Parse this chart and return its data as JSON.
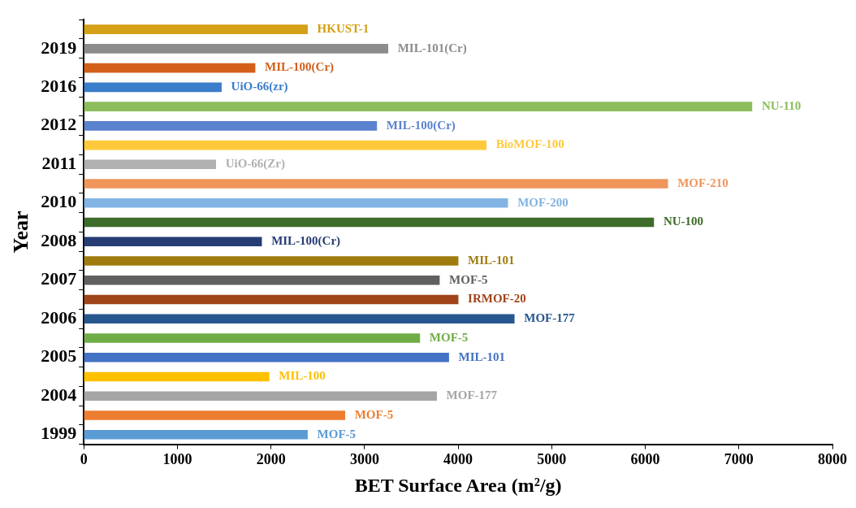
{
  "chart_data": {
    "type": "bar",
    "orientation": "horizontal",
    "xlabel": "BET Surface Area (m²/g)",
    "ylabel": "Year",
    "categories": [
      null,
      "2019",
      null,
      "2016",
      null,
      "2012",
      null,
      "2011",
      null,
      "2010",
      null,
      "2008",
      null,
      "2007",
      null,
      "2006",
      null,
      "2005",
      null,
      "2004",
      null,
      "1999"
    ],
    "xlim": [
      0,
      8000
    ],
    "xticks": [
      0,
      1000,
      2000,
      3000,
      4000,
      5000,
      6000,
      7000,
      8000
    ],
    "grid": false,
    "legend": false,
    "series": [
      {
        "name": "HKUST-1",
        "color": "#d4a017",
        "values": [
          2390,
          null,
          null,
          null,
          null,
          null,
          null,
          null,
          null,
          null,
          null,
          null,
          null,
          null,
          null,
          null,
          null,
          null,
          null,
          null,
          null,
          null
        ]
      },
      {
        "name": "MIL-101(Cr)",
        "color": "#8c8c8c",
        "values": [
          null,
          3250,
          null,
          null,
          null,
          null,
          null,
          null,
          null,
          null,
          null,
          null,
          null,
          null,
          null,
          null,
          null,
          null,
          null,
          null,
          null,
          null
        ]
      },
      {
        "name": "MIL-100(Cr)",
        "color": "#d45f1a",
        "values": [
          null,
          null,
          1830,
          null,
          null,
          null,
          null,
          null,
          null,
          null,
          null,
          null,
          null,
          null,
          null,
          null,
          null,
          null,
          null,
          null,
          null,
          null
        ]
      },
      {
        "name": "UiO-66(zr)",
        "color": "#3a7dc9",
        "values": [
          null,
          null,
          null,
          1470,
          null,
          null,
          null,
          null,
          null,
          null,
          null,
          null,
          null,
          null,
          null,
          null,
          null,
          null,
          null,
          null,
          null,
          null
        ]
      },
      {
        "name": "NU-110",
        "color": "#8cbd5a",
        "values": [
          null,
          null,
          null,
          null,
          7140,
          null,
          null,
          null,
          null,
          null,
          null,
          null,
          null,
          null,
          null,
          null,
          null,
          null,
          null,
          null,
          null,
          null
        ]
      },
      {
        "name": "MIL-100(Cr)",
        "color": "#5b82cf",
        "values": [
          null,
          null,
          null,
          null,
          null,
          3130,
          null,
          null,
          null,
          null,
          null,
          null,
          null,
          null,
          null,
          null,
          null,
          null,
          null,
          null,
          null,
          null
        ]
      },
      {
        "name": "BioMOF-100",
        "color": "#ffc93c",
        "values": [
          null,
          null,
          null,
          null,
          null,
          null,
          4300,
          null,
          null,
          null,
          null,
          null,
          null,
          null,
          null,
          null,
          null,
          null,
          null,
          null,
          null,
          null
        ]
      },
      {
        "name": "UiO-66(Zr)",
        "color": "#b0b0b0",
        "values": [
          null,
          null,
          null,
          null,
          null,
          null,
          null,
          1410,
          null,
          null,
          null,
          null,
          null,
          null,
          null,
          null,
          null,
          null,
          null,
          null,
          null,
          null
        ]
      },
      {
        "name": "MOF-210",
        "color": "#f0965a",
        "values": [
          null,
          null,
          null,
          null,
          null,
          null,
          null,
          null,
          6240,
          null,
          null,
          null,
          null,
          null,
          null,
          null,
          null,
          null,
          null,
          null,
          null,
          null
        ]
      },
      {
        "name": "MOF-200",
        "color": "#82b4e3",
        "values": [
          null,
          null,
          null,
          null,
          null,
          null,
          null,
          null,
          null,
          4530,
          null,
          null,
          null,
          null,
          null,
          null,
          null,
          null,
          null,
          null,
          null,
          null
        ]
      },
      {
        "name": "NU-100",
        "color": "#3d6b2a",
        "values": [
          null,
          null,
          null,
          null,
          null,
          null,
          null,
          null,
          null,
          null,
          6090,
          null,
          null,
          null,
          null,
          null,
          null,
          null,
          null,
          null,
          null,
          null
        ]
      },
      {
        "name": "MIL-100(Cr)",
        "color": "#263d73",
        "values": [
          null,
          null,
          null,
          null,
          null,
          null,
          null,
          null,
          null,
          null,
          null,
          1900,
          null,
          null,
          null,
          null,
          null,
          null,
          null,
          null,
          null,
          null
        ]
      },
      {
        "name": "MIL-101",
        "color": "#a07c10",
        "values": [
          null,
          null,
          null,
          null,
          null,
          null,
          null,
          null,
          null,
          null,
          null,
          null,
          4000,
          null,
          null,
          null,
          null,
          null,
          null,
          null,
          null,
          null
        ]
      },
      {
        "name": "MOF-5",
        "color": "#606060",
        "values": [
          null,
          null,
          null,
          null,
          null,
          null,
          null,
          null,
          null,
          null,
          null,
          null,
          null,
          3800,
          null,
          null,
          null,
          null,
          null,
          null,
          null,
          null
        ]
      },
      {
        "name": "IRMOF-20",
        "color": "#a0441a",
        "values": [
          null,
          null,
          null,
          null,
          null,
          null,
          null,
          null,
          null,
          null,
          null,
          null,
          null,
          null,
          4000,
          null,
          null,
          null,
          null,
          null,
          null,
          null
        ]
      },
      {
        "name": "MOF-177",
        "color": "#27578f",
        "values": [
          null,
          null,
          null,
          null,
          null,
          null,
          null,
          null,
          null,
          null,
          null,
          null,
          null,
          null,
          null,
          4600,
          null,
          null,
          null,
          null,
          null,
          null
        ]
      },
      {
        "name": "MOF-5",
        "color": "#70ad47",
        "values": [
          null,
          null,
          null,
          null,
          null,
          null,
          null,
          null,
          null,
          null,
          null,
          null,
          null,
          null,
          null,
          null,
          3590,
          null,
          null,
          null,
          null,
          null
        ]
      },
      {
        "name": "MIL-101",
        "color": "#4472c4",
        "values": [
          null,
          null,
          null,
          null,
          null,
          null,
          null,
          null,
          null,
          null,
          null,
          null,
          null,
          null,
          null,
          null,
          null,
          3900,
          null,
          null,
          null,
          null
        ]
      },
      {
        "name": "MIL-100",
        "color": "#ffc000",
        "values": [
          null,
          null,
          null,
          null,
          null,
          null,
          null,
          null,
          null,
          null,
          null,
          null,
          null,
          null,
          null,
          null,
          null,
          null,
          1980,
          null,
          null,
          null
        ]
      },
      {
        "name": "MOF-177",
        "color": "#a5a5a5",
        "values": [
          null,
          null,
          null,
          null,
          null,
          null,
          null,
          null,
          null,
          null,
          null,
          null,
          null,
          null,
          null,
          null,
          null,
          null,
          null,
          3770,
          null,
          null
        ]
      },
      {
        "name": "MOF-5",
        "color": "#ed7d31",
        "values": [
          null,
          null,
          null,
          null,
          null,
          null,
          null,
          null,
          null,
          null,
          null,
          null,
          null,
          null,
          null,
          null,
          null,
          null,
          null,
          null,
          2790,
          null
        ]
      },
      {
        "name": "MOF-5",
        "color": "#5b9bd5",
        "values": [
          null,
          null,
          null,
          null,
          null,
          null,
          null,
          null,
          null,
          null,
          null,
          null,
          null,
          null,
          null,
          null,
          null,
          null,
          null,
          null,
          null,
          2390
        ]
      }
    ]
  }
}
